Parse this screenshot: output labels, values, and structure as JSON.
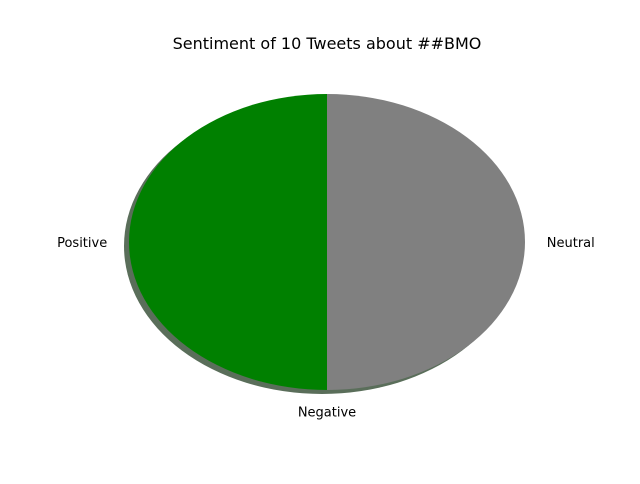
{
  "chart_data": {
    "type": "pie",
    "title": "Sentiment of 10 Tweets about ##BMO",
    "slices": [
      {
        "label": "Positive",
        "value": 5,
        "color": "#008000"
      },
      {
        "label": "Negative",
        "value": 0,
        "color": "#ff0000"
      },
      {
        "label": "Neutral",
        "value": 5,
        "color": "#808080"
      }
    ],
    "start_angle_deg": 90,
    "direction": "counterclockwise",
    "shadow": true,
    "shadow_color": "#5a6e5a",
    "legend": "none"
  }
}
